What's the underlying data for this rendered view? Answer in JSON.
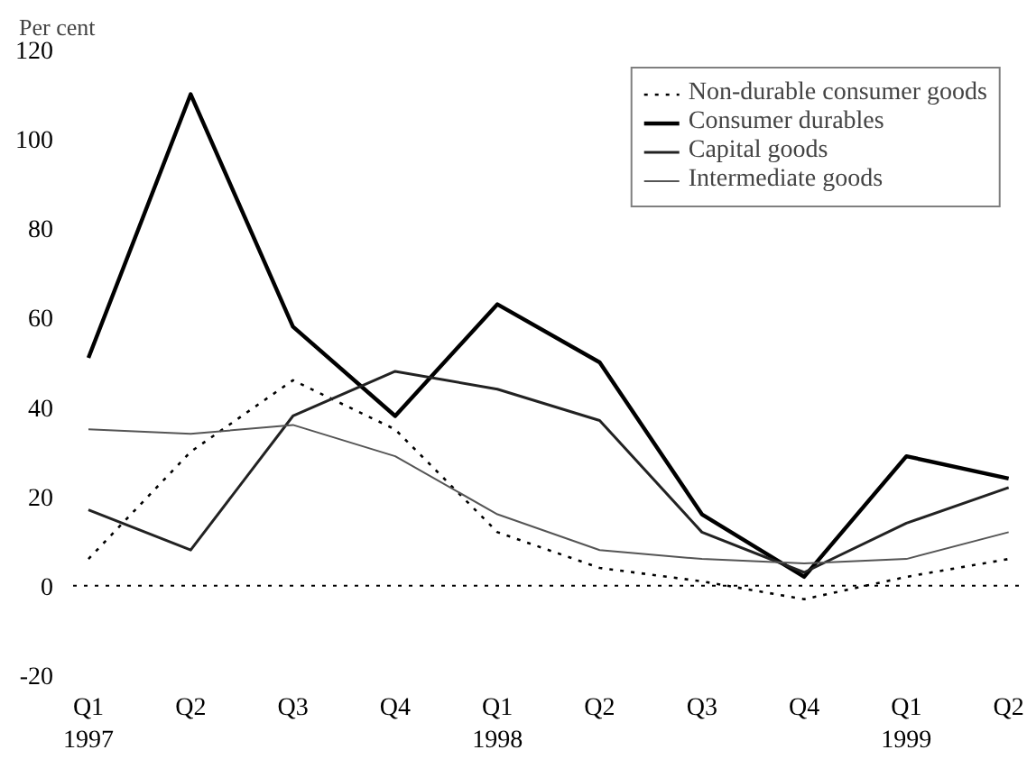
{
  "chart_data": {
    "type": "line",
    "ylabel": "Per cent",
    "categories": [
      "Q1\n1997",
      "Q2",
      "Q3",
      "Q4",
      "Q1\n1998",
      "Q2",
      "Q3",
      "Q4",
      "Q1\n1999",
      "Q2"
    ],
    "series": [
      {
        "name": "Non-durable consumer goods",
        "color": "#000000",
        "line_style": "dotted",
        "values": [
          6,
          30,
          46,
          35,
          12,
          4,
          1,
          -3,
          2,
          6
        ]
      },
      {
        "name": "Consumer durables",
        "color": "#000000",
        "line_style": "solid",
        "values": [
          51,
          110,
          58,
          38,
          63,
          50,
          16,
          2,
          29,
          24
        ]
      },
      {
        "name": "Capital goods",
        "color": "#222222",
        "line_style": "solid",
        "values": [
          17,
          8,
          38,
          48,
          44,
          37,
          12,
          3,
          14,
          22
        ]
      },
      {
        "name": "Intermediate goods",
        "color": "#555555",
        "line_style": "solid",
        "values": [
          35,
          34,
          36,
          29,
          16,
          8,
          6,
          5,
          6,
          12
        ]
      }
    ],
    "ylim": [
      -20,
      120
    ],
    "yticks": [
      -20,
      0,
      20,
      40,
      60,
      80,
      100,
      120
    ],
    "ref_lines": [
      {
        "axis": "y",
        "value": 0,
        "color": "#000000",
        "line_style": "dotted"
      }
    ],
    "grid": false,
    "legend": "top right",
    "marker": "none"
  }
}
